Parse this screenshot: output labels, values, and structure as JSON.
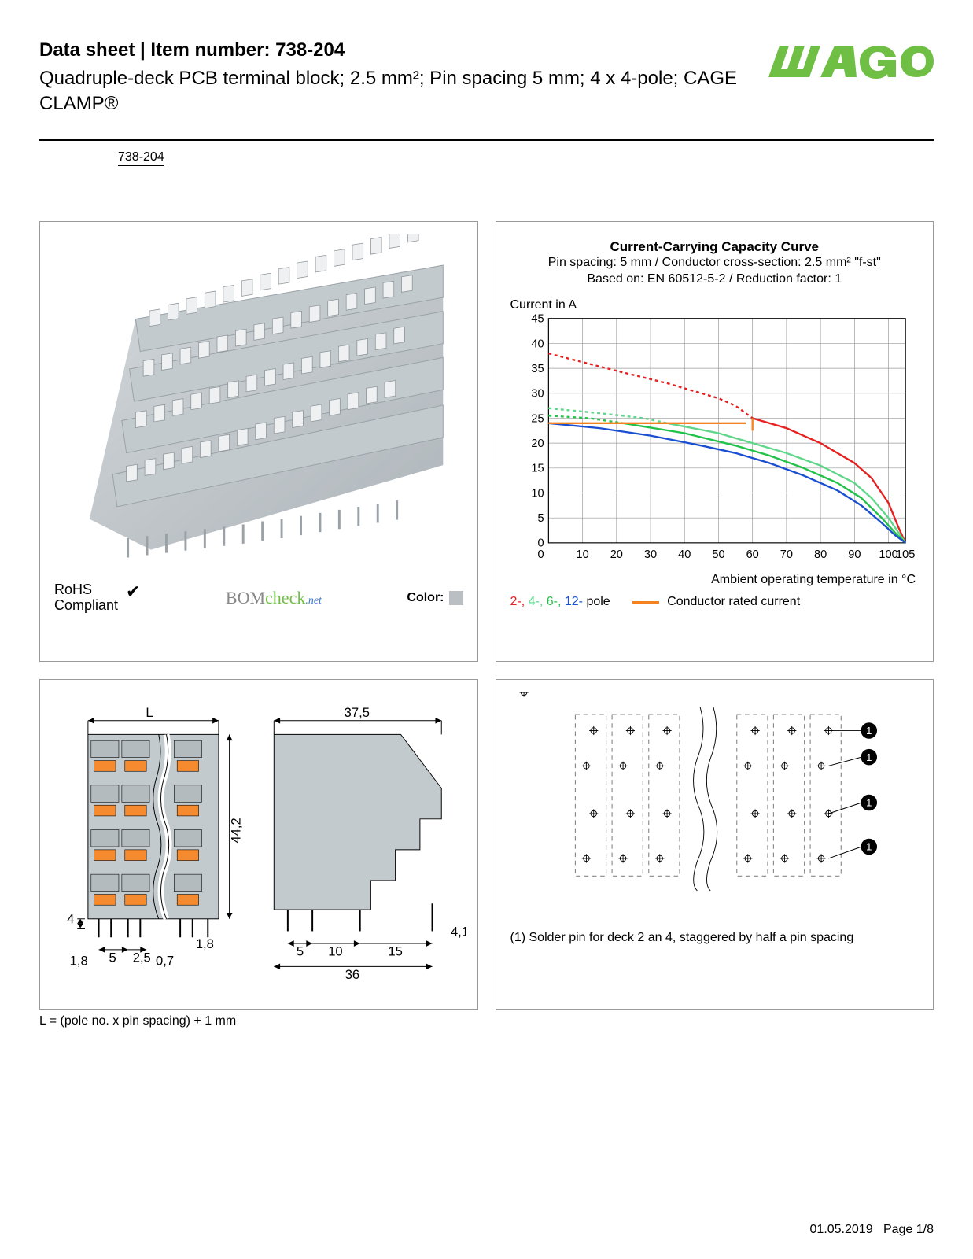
{
  "header": {
    "title": "Data sheet  |  Item number: 738-204",
    "subtitle": "Quadruple-deck PCB terminal block; 2.5 mm²; Pin spacing 5 mm; 4 x 4-pole; CAGE CLAMP®",
    "item_link": "738-204",
    "logo_color": "#6fbf44",
    "logo_text": "WAGO"
  },
  "product_panel": {
    "block_color": "#c3cace",
    "block_shadow": "#9aa2a7",
    "pin_color": "#b0b6ba",
    "rohs_line1": "RoHS",
    "rohs_line2": "Compliant",
    "bomcheck_text": "BOMcheck",
    "bomcheck_net": ".net",
    "color_label": "Color:",
    "color_swatch": "#b9bfc3"
  },
  "chart": {
    "title": "Current-Carrying Capacity Curve",
    "sub1": "Pin spacing: 5 mm / Conductor cross-section: 2.5 mm² \"f-st\"",
    "sub2": "Based on: EN 60512-5-2 / Reduction factor: 1",
    "y_label": "Current in A",
    "x_label": "Ambient operating temperature in °C",
    "y_ticks": [
      0,
      5,
      10,
      15,
      20,
      25,
      30,
      35,
      40,
      45
    ],
    "x_ticks": [
      0,
      10,
      20,
      30,
      40,
      50,
      60,
      70,
      80,
      90,
      100,
      105
    ],
    "xlim": [
      0,
      105
    ],
    "ylim": [
      0,
      45
    ],
    "grid_color": "#999999",
    "background_color": "#ffffff",
    "axis_fontsize": 15,
    "series": {
      "pole2_dashed": {
        "color": "#e62020",
        "dash": "4,4",
        "points": [
          [
            0,
            38
          ],
          [
            20,
            34.5
          ],
          [
            35,
            32
          ],
          [
            50,
            29
          ],
          [
            55,
            27.5
          ],
          [
            60,
            25
          ]
        ]
      },
      "pole2_solid": {
        "color": "#e62020",
        "dash": "0",
        "points": [
          [
            60,
            25
          ],
          [
            70,
            23
          ],
          [
            80,
            20
          ],
          [
            90,
            16
          ],
          [
            95,
            13
          ],
          [
            100,
            8
          ],
          [
            103,
            3
          ],
          [
            105,
            0
          ]
        ]
      },
      "pole4_dashed": {
        "color": "#5fd68a",
        "dash": "4,4",
        "points": [
          [
            0,
            27
          ],
          [
            15,
            26
          ],
          [
            28,
            25
          ],
          [
            35,
            24
          ]
        ]
      },
      "pole4_solid": {
        "color": "#5fd68a",
        "dash": "0",
        "points": [
          [
            35,
            24
          ],
          [
            50,
            22
          ],
          [
            60,
            20
          ],
          [
            70,
            18
          ],
          [
            80,
            15.5
          ],
          [
            90,
            12
          ],
          [
            95,
            9
          ],
          [
            100,
            5
          ],
          [
            103,
            2
          ],
          [
            105,
            0
          ]
        ]
      },
      "pole6_dashed": {
        "color": "#22c24a",
        "dash": "4,4",
        "points": [
          [
            0,
            25.5
          ],
          [
            12,
            25
          ],
          [
            22,
            24
          ]
        ]
      },
      "pole6_solid": {
        "color": "#22c24a",
        "dash": "0",
        "points": [
          [
            22,
            24
          ],
          [
            40,
            22
          ],
          [
            55,
            19.5
          ],
          [
            65,
            17.5
          ],
          [
            75,
            15
          ],
          [
            85,
            12
          ],
          [
            92,
            9
          ],
          [
            98,
            5
          ],
          [
            102,
            2
          ],
          [
            105,
            0
          ]
        ]
      },
      "pole12_solid": {
        "color": "#1b4fd1",
        "dash": "0",
        "points": [
          [
            0,
            24
          ],
          [
            15,
            23
          ],
          [
            30,
            21.5
          ],
          [
            45,
            19.5
          ],
          [
            55,
            18
          ],
          [
            65,
            16
          ],
          [
            75,
            13.5
          ],
          [
            85,
            10.5
          ],
          [
            92,
            7.5
          ],
          [
            98,
            4
          ],
          [
            102,
            1.5
          ],
          [
            105,
            0
          ]
        ]
      },
      "rated_horizontal": {
        "color": "#f58220",
        "dash": "0",
        "points": [
          [
            0,
            24
          ],
          [
            58,
            24
          ]
        ]
      },
      "rated_vertical": {
        "color": "#f58220",
        "dash": "0",
        "points": [
          [
            60,
            25
          ],
          [
            60,
            22.5
          ]
        ]
      }
    },
    "legend": {
      "pole2": "2-,",
      "pole4": "4-,",
      "pole6": "6-,",
      "pole12": "12-",
      "pole_suffix": " pole",
      "rated_color": "#f58220",
      "rated_label": "Conductor rated current"
    }
  },
  "dim_panel": {
    "top_L": "L",
    "top_375": "37,5",
    "side_442": "44,2",
    "d4": "4",
    "d5": "5",
    "d25": "2,5",
    "d18a": "1,8",
    "d18b": "1,8",
    "d07": "0,7",
    "d5b": "5",
    "d10": "10",
    "d15": "15",
    "d41": "4,1",
    "d36": "36",
    "caption": "L = (pole no. x pin spacing) + 1 mm",
    "body_fill": "#c3cace",
    "clamp_fill": "#f58a2e",
    "line_color": "#000000"
  },
  "footprint_panel": {
    "note": "(1) Solder pin for deck 2 an 4, staggered by half a pin spacing",
    "dash_color": "#888888",
    "line_color": "#000000"
  },
  "footer": {
    "date": "01.05.2019",
    "page": "Page 1/8"
  }
}
